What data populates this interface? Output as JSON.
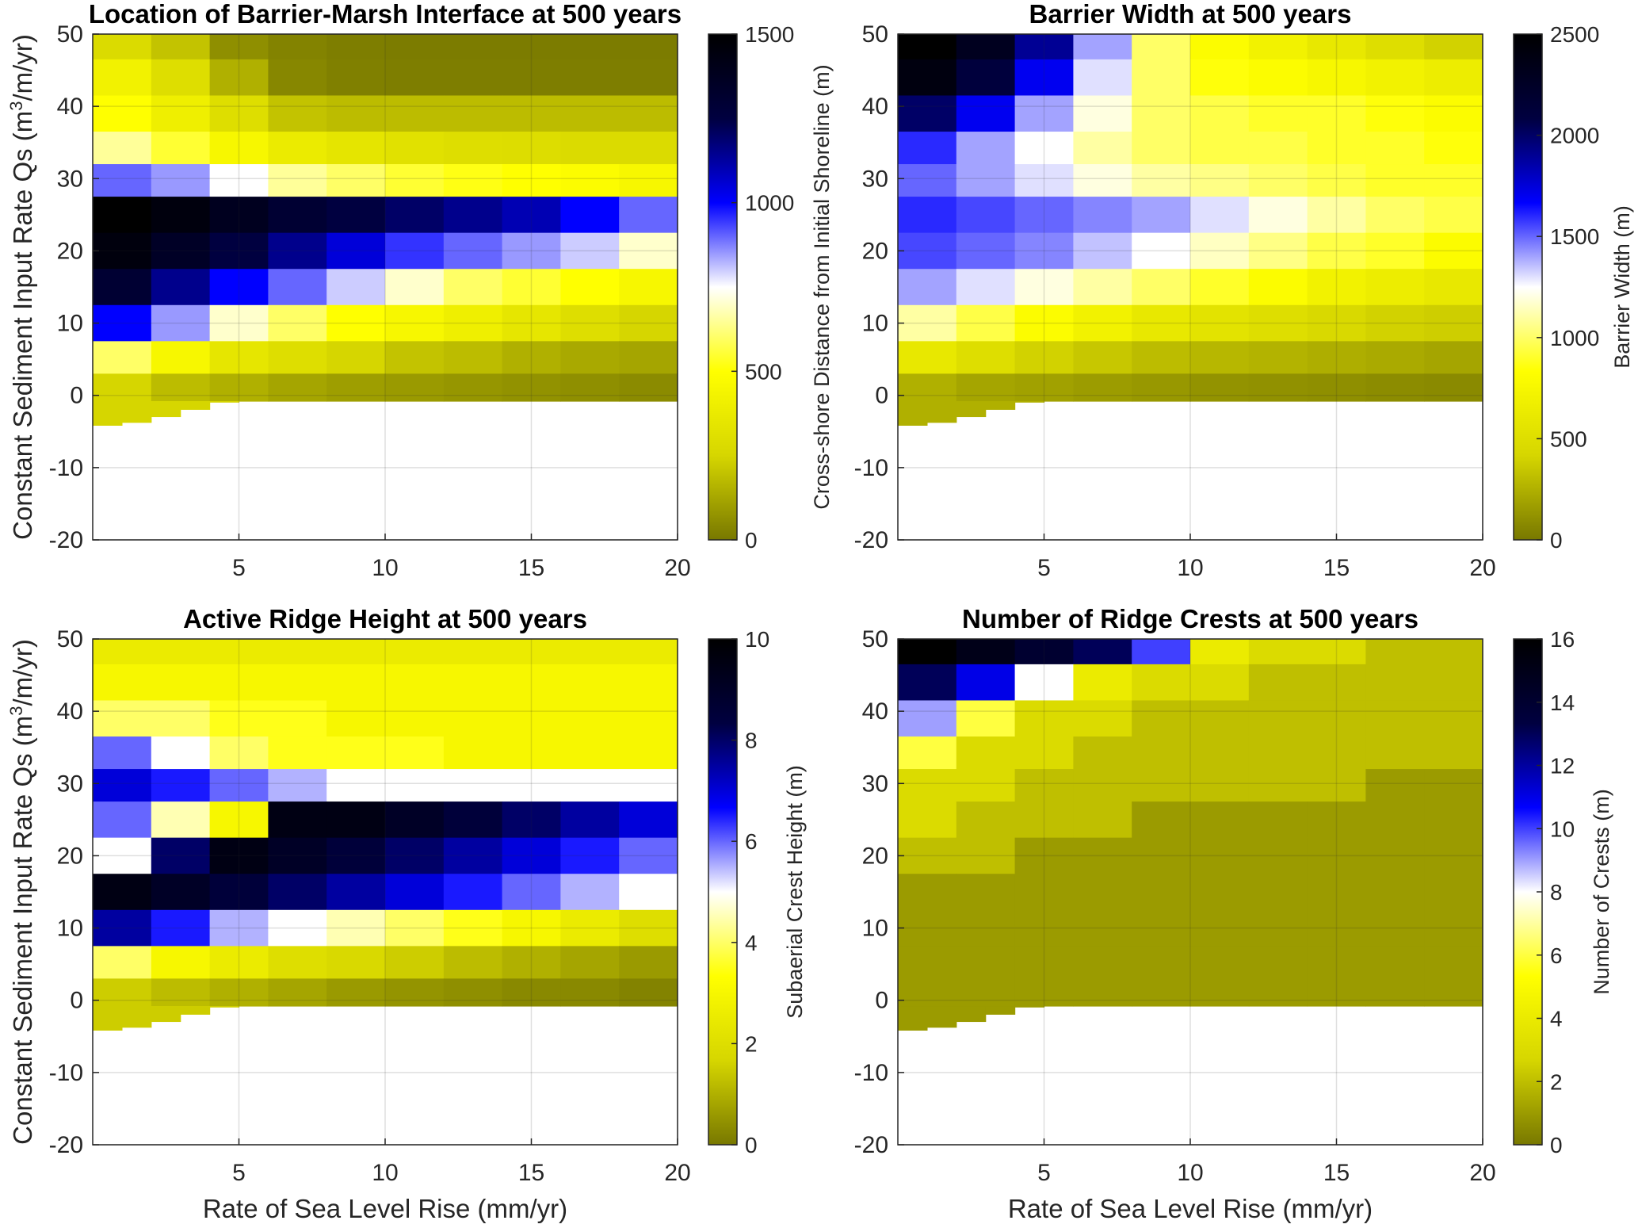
{
  "figure": {
    "domain": "Chart",
    "colormap": [
      "#787800",
      "#d6d600",
      "#ffff00",
      "#ffffff",
      "#0000ff",
      "#000040",
      "#000000"
    ]
  },
  "chart_data": [
    {
      "type": "heatmap",
      "id": "interface",
      "title": "Location of Barrier-Marsh Interface at 500 years",
      "xlabel": "",
      "ylabel": "Constant Sediment Input Rate Qs (m³/m/yr)",
      "ylabel_parts": {
        "pre": "Constant Sediment Input Rate Qs (m",
        "sup": "3",
        "post": "/m/yr)"
      },
      "xlim": [
        0,
        20
      ],
      "ylim": [
        -20,
        50
      ],
      "xticks": [
        "5",
        "10",
        "15",
        "20"
      ],
      "yticks": [
        "-20",
        "-10",
        "0",
        "10",
        "20",
        "30",
        "40",
        "50"
      ],
      "grid": true,
      "colorbar": {
        "label": "Cross-shore Distance from Initial Shoreline (m)",
        "min": 0,
        "max": 1500,
        "ticks": [
          "0",
          "500",
          "1000",
          "1500"
        ]
      },
      "bands": [
        {
          "qs": 49,
          "values": [
            280,
            200,
            60,
            30,
            15,
            10,
            10,
            10,
            10,
            10
          ]
        },
        {
          "qs": 44,
          "values": [
            420,
            300,
            150,
            40,
            20,
            15,
            15,
            15,
            15,
            15
          ]
        },
        {
          "qs": 39,
          "values": [
            500,
            400,
            300,
            200,
            180,
            180,
            180,
            180,
            180,
            180
          ]
        },
        {
          "qs": 34,
          "values": [
            650,
            550,
            450,
            380,
            340,
            320,
            300,
            290,
            280,
            280
          ]
        },
        {
          "qs": 30,
          "values": [
            900,
            850,
            750,
            650,
            600,
            550,
            520,
            500,
            480,
            450
          ]
        },
        {
          "qs": 25,
          "values": [
            1500,
            1450,
            1380,
            1300,
            1250,
            1200,
            1150,
            1100,
            1000,
            900
          ]
        },
        {
          "qs": 20,
          "values": [
            1450,
            1350,
            1250,
            1150,
            1050,
            950,
            900,
            850,
            800,
            700
          ]
        },
        {
          "qs": 15,
          "values": [
            1300,
            1150,
            1000,
            900,
            800,
            700,
            600,
            550,
            500,
            450
          ]
        },
        {
          "qs": 10,
          "values": [
            1000,
            850,
            700,
            600,
            500,
            450,
            400,
            350,
            300,
            250
          ]
        },
        {
          "qs": 5,
          "values": [
            600,
            450,
            350,
            300,
            250,
            200,
            180,
            150,
            130,
            120
          ]
        },
        {
          "qs": 1,
          "values": [
            250,
            180,
            150,
            120,
            100,
            90,
            80,
            70,
            60,
            50
          ]
        }
      ]
    },
    {
      "type": "heatmap",
      "id": "width",
      "title": "Barrier Width at 500 years",
      "xlabel": "",
      "ylabel": "",
      "xlim": [
        0,
        20
      ],
      "ylim": [
        -20,
        50
      ],
      "xticks": [
        "5",
        "10",
        "15",
        "20"
      ],
      "yticks": [
        "-20",
        "-10",
        "0",
        "10",
        "20",
        "30",
        "40",
        "50"
      ],
      "grid": true,
      "colorbar": {
        "label": "Barrier Width (m)",
        "min": 0,
        "max": 2500,
        "ticks": [
          "0",
          "500",
          "1000",
          "1500",
          "2000",
          "2500"
        ]
      },
      "bands": [
        {
          "qs": 49,
          "values": [
            2500,
            2300,
            1900,
            1400,
            1000,
            800,
            700,
            600,
            500,
            400
          ]
        },
        {
          "qs": 44,
          "values": [
            2400,
            2100,
            1700,
            1300,
            1000,
            850,
            800,
            750,
            700,
            650
          ]
        },
        {
          "qs": 39,
          "values": [
            2000,
            1700,
            1400,
            1200,
            1000,
            950,
            900,
            900,
            850,
            800
          ]
        },
        {
          "qs": 34,
          "values": [
            1600,
            1400,
            1250,
            1100,
            1000,
            950,
            950,
            900,
            900,
            850
          ]
        },
        {
          "qs": 30,
          "values": [
            1500,
            1400,
            1300,
            1200,
            1100,
            1050,
            1000,
            950,
            900,
            900
          ]
        },
        {
          "qs": 25,
          "values": [
            1600,
            1550,
            1500,
            1450,
            1400,
            1300,
            1200,
            1100,
            1000,
            950
          ]
        },
        {
          "qs": 20,
          "values": [
            1550,
            1500,
            1450,
            1350,
            1250,
            1150,
            1050,
            950,
            900,
            800
          ]
        },
        {
          "qs": 15,
          "values": [
            1400,
            1300,
            1200,
            1100,
            1000,
            900,
            800,
            700,
            650,
            600
          ]
        },
        {
          "qs": 10,
          "values": [
            1100,
            950,
            800,
            700,
            600,
            550,
            500,
            450,
            400,
            380
          ]
        },
        {
          "qs": 5,
          "values": [
            600,
            500,
            400,
            350,
            300,
            280,
            260,
            240,
            220,
            200
          ]
        },
        {
          "qs": 1,
          "values": [
            250,
            200,
            180,
            160,
            140,
            120,
            110,
            100,
            90,
            80
          ]
        }
      ]
    },
    {
      "type": "heatmap",
      "id": "ridge-height",
      "title": "Active Ridge Height at 500 years",
      "xlabel": "Rate of Sea Level Rise (mm/yr)",
      "ylabel": "Constant Sediment Input Rate Qs (m³/m/yr)",
      "ylabel_parts": {
        "pre": "Constant Sediment Input Rate Qs (m",
        "sup": "3",
        "post": "/m/yr)"
      },
      "xlim": [
        0,
        20
      ],
      "ylim": [
        -20,
        50
      ],
      "xticks": [
        "5",
        "10",
        "15",
        "20"
      ],
      "yticks": [
        "-20",
        "-10",
        "0",
        "10",
        "20",
        "30",
        "40",
        "50"
      ],
      "grid": true,
      "colorbar": {
        "label": "Subaerial Crest Height (m)",
        "min": 0,
        "max": 10,
        "ticks": [
          "0",
          "2",
          "4",
          "6",
          "8",
          "10"
        ]
      },
      "bands": [
        {
          "qs": 49,
          "values": [
            2.5,
            2.5,
            2.5,
            2.5,
            2.5,
            2.5,
            2.5,
            2.5,
            2.5,
            2.5
          ]
        },
        {
          "qs": 44,
          "values": [
            3.0,
            3.0,
            3.0,
            3.0,
            3.0,
            3.0,
            3.0,
            3.0,
            3.0,
            3.0
          ]
        },
        {
          "qs": 39,
          "values": [
            4.0,
            4.0,
            3.5,
            3.5,
            3.0,
            3.0,
            3.0,
            3.0,
            3.0,
            3.0
          ]
        },
        {
          "qs": 34,
          "values": [
            6.0,
            5.0,
            4.0,
            3.5,
            3.5,
            3.5,
            3.0,
            3.0,
            3.0,
            3.0
          ]
        },
        {
          "qs": 30,
          "values": [
            7.0,
            6.5,
            6.0,
            5.5,
            5.0,
            5.0,
            5.0,
            5.0,
            5.0,
            5.0
          ]
        },
        {
          "qs": 25,
          "values": [
            6.0,
            4.5,
            3.0,
            9.5,
            9.5,
            9.0,
            8.5,
            8.0,
            7.5,
            7.0
          ]
        },
        {
          "qs": 20,
          "values": [
            5.0,
            8.0,
            9.5,
            9.0,
            8.5,
            8.0,
            7.5,
            7.0,
            6.5,
            6.0
          ]
        },
        {
          "qs": 15,
          "values": [
            9.5,
            9.0,
            8.5,
            8.0,
            7.5,
            7.0,
            6.5,
            6.0,
            5.5,
            5.0
          ]
        },
        {
          "qs": 10,
          "values": [
            7.5,
            6.5,
            5.5,
            5.0,
            4.5,
            4.0,
            3.5,
            3.0,
            2.5,
            2.0
          ]
        },
        {
          "qs": 5,
          "values": [
            4.0,
            3.0,
            2.5,
            2.0,
            1.8,
            1.5,
            1.2,
            1.0,
            0.8,
            0.6
          ]
        },
        {
          "qs": 1,
          "values": [
            1.5,
            1.2,
            1.0,
            0.8,
            0.6,
            0.5,
            0.4,
            0.3,
            0.3,
            0.2
          ]
        }
      ]
    },
    {
      "type": "heatmap",
      "id": "ridge-crests",
      "title": "Number of Ridge Crests at 500 years",
      "xlabel": "Rate of Sea Level Rise (mm/yr)",
      "ylabel": "",
      "xlim": [
        0,
        20
      ],
      "ylim": [
        -20,
        50
      ],
      "xticks": [
        "5",
        "10",
        "15",
        "20"
      ],
      "yticks": [
        "-20",
        "-10",
        "0",
        "10",
        "20",
        "30",
        "40",
        "50"
      ],
      "grid": true,
      "colorbar": {
        "label": "Number of Crests (m)",
        "min": 0,
        "max": 16,
        "ticks": [
          "0",
          "2",
          "4",
          "6",
          "8",
          "10",
          "12",
          "14",
          "16"
        ]
      },
      "bands": [
        {
          "qs": 49,
          "values": [
            16,
            15,
            14,
            13,
            10,
            4,
            3,
            3,
            2,
            2
          ]
        },
        {
          "qs": 44,
          "values": [
            13,
            11,
            8,
            4,
            3,
            3,
            2,
            2,
            2,
            2
          ]
        },
        {
          "qs": 39,
          "values": [
            9,
            6,
            3,
            3,
            2,
            2,
            2,
            2,
            2,
            2
          ]
        },
        {
          "qs": 34,
          "values": [
            6,
            3,
            3,
            2,
            2,
            2,
            2,
            2,
            2,
            2
          ]
        },
        {
          "qs": 30,
          "values": [
            3,
            3,
            2,
            2,
            2,
            2,
            2,
            2,
            1,
            1
          ]
        },
        {
          "qs": 25,
          "values": [
            3,
            2,
            2,
            2,
            1,
            1,
            1,
            1,
            1,
            1
          ]
        },
        {
          "qs": 20,
          "values": [
            2,
            2,
            1,
            1,
            1,
            1,
            1,
            1,
            1,
            1
          ]
        },
        {
          "qs": 15,
          "values": [
            1,
            1,
            1,
            1,
            1,
            1,
            1,
            1,
            1,
            1
          ]
        },
        {
          "qs": 10,
          "values": [
            1,
            1,
            1,
            1,
            1,
            1,
            1,
            1,
            1,
            1
          ]
        },
        {
          "qs": 5,
          "values": [
            1,
            1,
            1,
            1,
            1,
            1,
            1,
            1,
            1,
            1
          ]
        },
        {
          "qs": 1,
          "values": [
            1,
            1,
            1,
            1,
            1,
            1,
            1,
            1,
            1,
            1
          ]
        }
      ]
    }
  ]
}
